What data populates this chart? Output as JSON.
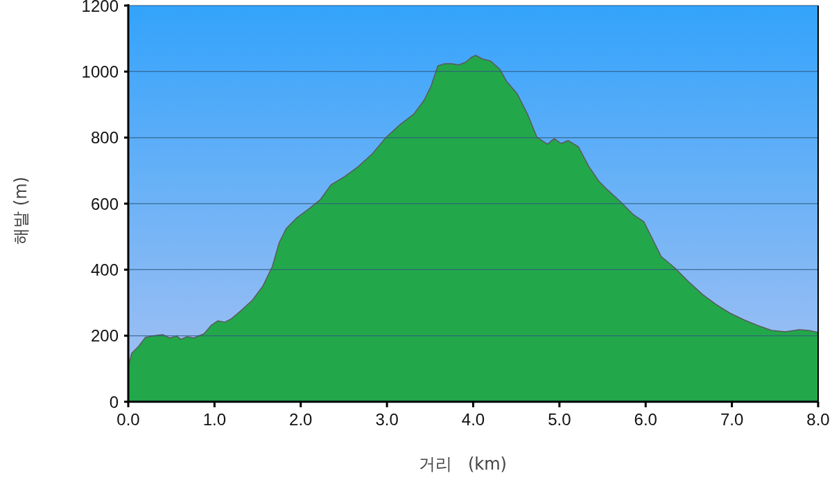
{
  "chart_data": {
    "type": "area",
    "xlabel": "거리   (km)",
    "ylabel": "해발 (m)",
    "x": [
      0,
      0.04,
      0.12,
      0.2,
      0.32,
      0.4,
      0.48,
      0.56,
      0.61,
      0.68,
      0.76,
      0.88,
      0.96,
      1.04,
      1.12,
      1.2,
      1.32,
      1.44,
      1.56,
      1.67,
      1.75,
      1.83,
      1.95,
      2.11,
      2.23,
      2.35,
      2.51,
      2.67,
      2.83,
      2.99,
      3.15,
      3.31,
      3.43,
      3.51,
      3.59,
      3.67,
      3.75,
      3.83,
      3.91,
      3.99,
      4.03,
      4.11,
      4.2,
      4.31,
      4.39,
      4.51,
      4.63,
      4.74,
      4.86,
      4.94,
      5.02,
      5.1,
      5.22,
      5.34,
      5.46,
      5.54,
      5.7,
      5.86,
      5.98,
      6.06,
      6.18,
      6.34,
      6.5,
      6.66,
      6.82,
      6.98,
      7.14,
      7.3,
      7.46,
      7.62,
      7.78,
      7.89,
      8.0
    ],
    "series": [
      {
        "color": "#22a84a",
        "values": [
          105,
          147,
          168,
          195,
          201,
          203,
          193,
          199,
          189,
          197,
          193,
          206,
          231,
          245,
          241,
          252,
          279,
          308,
          350,
          409,
          482,
          524,
          556,
          587,
          613,
          657,
          682,
          713,
          751,
          801,
          839,
          871,
          913,
          955,
          1017,
          1024,
          1024,
          1020,
          1028,
          1045,
          1049,
          1038,
          1032,
          1007,
          969,
          933,
          871,
          801,
          780,
          797,
          782,
          791,
          772,
          713,
          667,
          646,
          608,
          566,
          545,
          503,
          440,
          405,
          363,
          325,
          294,
          268,
          248,
          231,
          216,
          212,
          218,
          216,
          210
        ]
      }
    ],
    "xlim": [
      0,
      8
    ],
    "ylim": [
      0,
      1200
    ],
    "xticks": [
      {
        "value": 0,
        "label": "0.0"
      },
      {
        "value": 1,
        "label": "1.0"
      },
      {
        "value": 2,
        "label": "2.0"
      },
      {
        "value": 3,
        "label": "3.0"
      },
      {
        "value": 4,
        "label": "4.0"
      },
      {
        "value": 5,
        "label": "5.0"
      },
      {
        "value": 6,
        "label": "6.0"
      },
      {
        "value": 7,
        "label": "7.0"
      },
      {
        "value": 8,
        "label": "8.0"
      }
    ],
    "yticks": [
      0,
      200,
      400,
      600,
      800,
      1000,
      1200
    ],
    "grid": "y"
  }
}
